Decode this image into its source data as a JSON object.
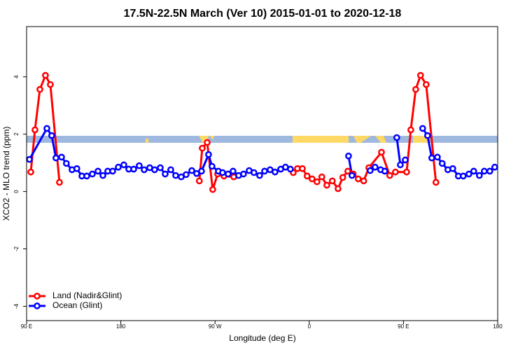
{
  "chart_data": {
    "type": "line",
    "title": "17.5N-22.5N March (Ver 10)   2015-01-01 to 2020-12-18",
    "x_label": "Longitude (deg E)",
    "y_label": "XCO2 - MLO trend (ppm)",
    "xlim": [
      90,
      540
    ],
    "ylim": [
      -4.5,
      5.75
    ],
    "xticks": [
      {
        "value": 90,
        "label": "90 E"
      },
      180,
      {
        "value": 270,
        "label": "90 W"
      },
      {
        "value": 360,
        "label": "0"
      },
      {
        "value": 450,
        "label": "90 E"
      },
      {
        "value": 540,
        "label": "180"
      }
    ],
    "yticks": [
      -4,
      -2,
      0,
      2,
      4
    ],
    "legend": "bottom-left",
    "series": [
      {
        "name": "Land (Nadir&Glint)",
        "color": "#ff0000",
        "x": [
          94,
          98,
          102.7,
          108,
          112.7,
          121.4,
          null,
          255,
          257.8,
          262.5,
          267.8,
          272.5,
          278.5,
          287.9,
          null,
          344.7,
          348.7,
          353.4,
          358,
          362.7,
          367.4,
          372,
          376.8,
          382,
          387.5,
          392,
          396.8,
          402,
          406.8,
          412,
          416.9,
          429,
          436.9,
          442.3,
          453,
          457,
          461.7,
          466.3,
          471.7,
          481
        ],
        "values": [
          0.68,
          2.15,
          3.56,
          4.05,
          3.73,
          0.32,
          null,
          0.37,
          1.51,
          1.71,
          0.07,
          0.61,
          0.54,
          0.51,
          null,
          0.66,
          0.8,
          0.8,
          0.54,
          0.44,
          0.34,
          0.51,
          0.22,
          0.37,
          0.1,
          0.49,
          0.71,
          0.61,
          0.44,
          0.37,
          0.83,
          1.37,
          0.56,
          0.68,
          0.68,
          2.15,
          3.56,
          4.05,
          3.73,
          0.32
        ]
      },
      {
        "name": "Ocean (Glint)",
        "color": "#0000ff",
        "x": [
          92.7,
          109.4,
          114,
          118,
          123.4,
          128,
          133.4,
          138,
          142.8,
          147.5,
          152.8,
          158.2,
          162.9,
          167.5,
          172.2,
          177.6,
          182.9,
          187.6,
          192.3,
          197.6,
          202.3,
          207.6,
          212.3,
          217.7,
          222.4,
          227.7,
          232.4,
          237.7,
          242.4,
          247.8,
          252.4,
          257.1,
          263.8,
          267.1,
          273.2,
          277.2,
          282.5,
          287.2,
          292.5,
          297.2,
          302.6,
          307.2,
          312.6,
          317.3,
          322.6,
          327.3,
          332.7,
          337.3,
          342,
          null,
          397.5,
          400.8,
          null,
          418.2,
          422.9,
          428.2,
          432.2,
          null,
          443.6,
          447,
          451.7,
          null,
          468.3,
          473,
          477,
          482.4,
          487,
          492.4,
          497.1,
          502.4,
          507.1,
          512.5,
          517.1,
          522.5,
          527.2,
          532.5,
          537.2
        ],
        "values": [
          1.12,
          2.2,
          1.95,
          1.17,
          1.2,
          0.98,
          0.76,
          0.8,
          0.54,
          0.54,
          0.61,
          0.71,
          0.56,
          0.71,
          0.71,
          0.85,
          0.93,
          0.78,
          0.78,
          0.9,
          0.76,
          0.83,
          0.76,
          0.83,
          0.61,
          0.76,
          0.56,
          0.51,
          0.59,
          0.73,
          0.63,
          0.71,
          1.29,
          0.88,
          0.71,
          0.66,
          0.61,
          0.71,
          0.56,
          0.61,
          0.73,
          0.66,
          0.56,
          0.71,
          0.76,
          0.68,
          0.78,
          0.85,
          0.78,
          null,
          1.24,
          0.56,
          null,
          0.73,
          0.85,
          0.76,
          0.71,
          null,
          1.88,
          0.93,
          1.1,
          null,
          2.2,
          1.95,
          1.17,
          1.2,
          0.98,
          0.76,
          0.8,
          0.54,
          0.54,
          0.61,
          0.71,
          0.56,
          0.71,
          0.71,
          0.85
        ]
      }
    ]
  }
}
